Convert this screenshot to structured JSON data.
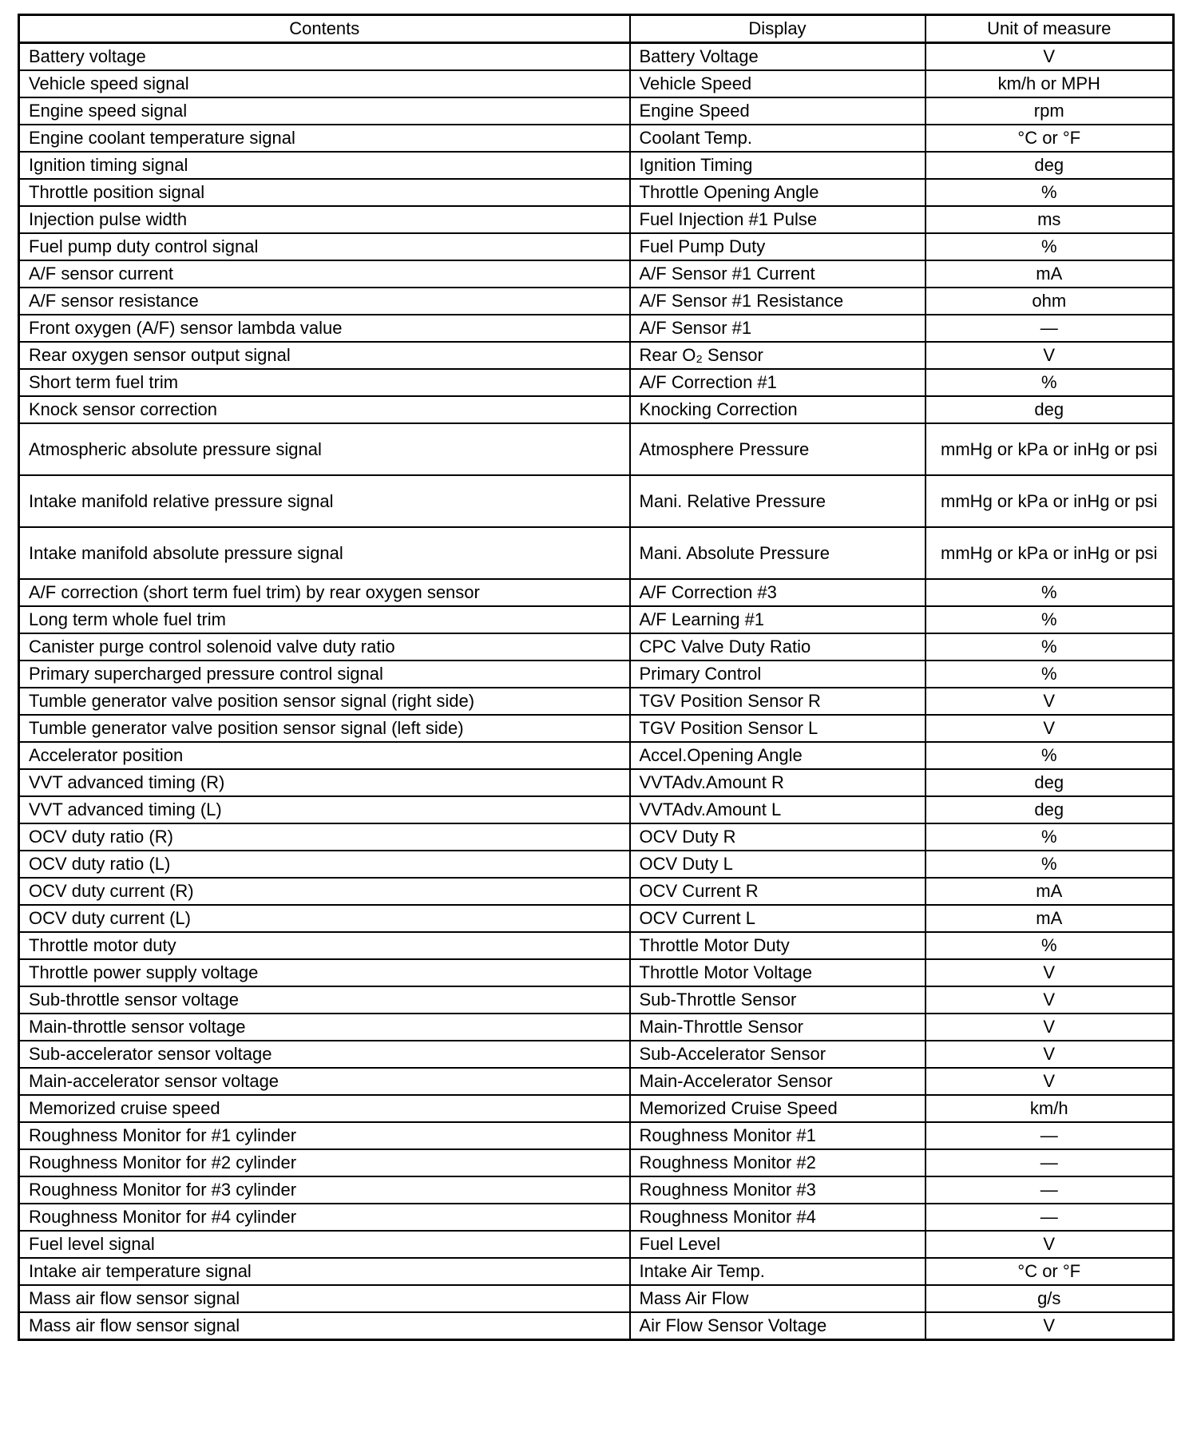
{
  "headers": [
    "Contents",
    "Display",
    "Unit of measure"
  ],
  "rows": [
    [
      "Battery voltage",
      "Battery Voltage",
      "V"
    ],
    [
      "Vehicle speed signal",
      "Vehicle Speed",
      "km/h or MPH"
    ],
    [
      "Engine speed signal",
      "Engine Speed",
      "rpm"
    ],
    [
      "Engine coolant temperature signal",
      "Coolant Temp.",
      "°C or °F"
    ],
    [
      "Ignition timing signal",
      "Ignition Timing",
      "deg"
    ],
    [
      "Throttle position signal",
      "Throttle Opening Angle",
      "%"
    ],
    [
      "Injection pulse width",
      "Fuel Injection #1 Pulse",
      "ms"
    ],
    [
      "Fuel pump duty control signal",
      "Fuel Pump Duty",
      "%"
    ],
    [
      "A/F sensor current",
      "A/F Sensor #1 Current",
      "mA"
    ],
    [
      "A/F sensor resistance",
      "A/F Sensor #1 Resistance",
      "ohm"
    ],
    [
      "Front oxygen (A/F) sensor lambda value",
      "A/F Sensor #1",
      "—"
    ],
    [
      "Rear oxygen sensor output signal",
      "Rear O₂ Sensor",
      "V"
    ],
    [
      "Short term fuel trim",
      "A/F Correction #1",
      "%"
    ],
    [
      "Knock sensor correction",
      "Knocking Correction",
      "deg"
    ],
    [
      "Atmospheric absolute pressure signal",
      "Atmosphere Pressure",
      "mmHg or kPa or inHg or psi"
    ],
    [
      "Intake manifold relative pressure signal",
      "Mani. Relative Pressure",
      "mmHg or kPa or inHg or psi"
    ],
    [
      "Intake manifold absolute pressure signal",
      "Mani. Absolute Pressure",
      "mmHg or kPa or inHg or psi"
    ],
    [
      "A/F correction (short term fuel trim) by rear oxygen sensor",
      "A/F Correction #3",
      "%"
    ],
    [
      "Long term whole fuel trim",
      "A/F Learning #1",
      "%"
    ],
    [
      "Canister purge control solenoid valve duty ratio",
      "CPC Valve Duty Ratio",
      "%"
    ],
    [
      "Primary supercharged pressure control signal",
      "Primary Control",
      "%"
    ],
    [
      "Tumble generator valve position sensor signal (right side)",
      "TGV Position Sensor R",
      "V"
    ],
    [
      "Tumble generator valve position sensor signal (left side)",
      "TGV Position Sensor L",
      "V"
    ],
    [
      "Accelerator position",
      "Accel.Opening Angle",
      "%"
    ],
    [
      "VVT advanced timing (R)",
      "VVTAdv.Amount R",
      "deg"
    ],
    [
      "VVT advanced timing (L)",
      "VVTAdv.Amount L",
      "deg"
    ],
    [
      "OCV duty ratio (R)",
      "OCV Duty R",
      "%"
    ],
    [
      "OCV duty ratio (L)",
      "OCV Duty L",
      "%"
    ],
    [
      "OCV duty current (R)",
      "OCV Current R",
      "mA"
    ],
    [
      "OCV duty current (L)",
      "OCV Current L",
      "mA"
    ],
    [
      "Throttle motor duty",
      "Throttle Motor Duty",
      "%"
    ],
    [
      "Throttle power supply voltage",
      "Throttle Motor Voltage",
      "V"
    ],
    [
      "Sub-throttle sensor voltage",
      "Sub-Throttle Sensor",
      "V"
    ],
    [
      "Main-throttle sensor voltage",
      "Main-Throttle Sensor",
      "V"
    ],
    [
      "Sub-accelerator sensor voltage",
      "Sub-Accelerator Sensor",
      "V"
    ],
    [
      "Main-accelerator sensor voltage",
      "Main-Accelerator Sensor",
      "V"
    ],
    [
      "Memorized cruise speed",
      "Memorized Cruise Speed",
      "km/h"
    ],
    [
      "Roughness Monitor for #1 cylinder",
      "Roughness Monitor #1",
      "—"
    ],
    [
      "Roughness Monitor for #2 cylinder",
      "Roughness Monitor #2",
      "—"
    ],
    [
      "Roughness Monitor for #3 cylinder",
      "Roughness Monitor #3",
      "—"
    ],
    [
      "Roughness Monitor for #4 cylinder",
      "Roughness Monitor #4",
      "—"
    ],
    [
      "Fuel level signal",
      "Fuel Level",
      "V"
    ],
    [
      "Intake air temperature signal",
      "Intake Air Temp.",
      "°C or °F"
    ],
    [
      "Mass air flow sensor signal",
      "Mass Air Flow",
      "g/s"
    ],
    [
      "Mass air flow sensor signal",
      "Air Flow Sensor Voltage",
      "V"
    ]
  ]
}
